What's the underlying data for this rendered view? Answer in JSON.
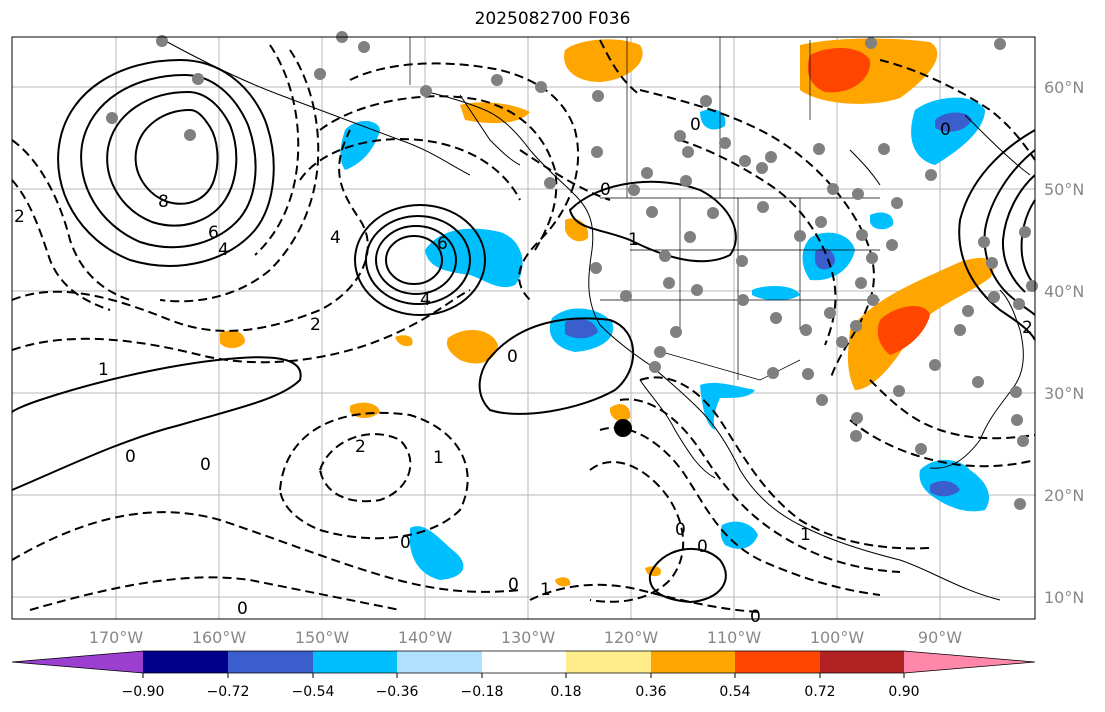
{
  "title": "2025082700 F036",
  "map": {
    "lon_ticks": [
      "170°W",
      "160°W",
      "150°W",
      "140°W",
      "130°W",
      "120°W",
      "110°W",
      "100°W",
      "90°W"
    ],
    "lat_ticks": [
      "60°N",
      "50°N",
      "40°N",
      "30°N",
      "20°N",
      "10°N"
    ],
    "contour_labels": [
      "0",
      "0",
      "0",
      "0",
      "0",
      "0",
      "0",
      "0",
      "0",
      "0",
      "0",
      "0",
      "1",
      "1",
      "1",
      "1",
      "1",
      "2",
      "2",
      "2",
      "2",
      "4",
      "4",
      "4",
      "6",
      "6",
      "8"
    ]
  },
  "colorbar": {
    "ticks": [
      "−0.90",
      "−0.72",
      "−0.54",
      "−0.36",
      "−0.18",
      "0.18",
      "0.36",
      "0.54",
      "0.72",
      "0.90"
    ],
    "colors": [
      "#9b3fd0",
      "#00008b",
      "#3a5fcd",
      "#00bfff",
      "#b0e2ff",
      "#ffffff",
      "#ffec8b",
      "#ffa500",
      "#ff4500",
      "#b22222",
      "#ff88aa"
    ]
  }
}
